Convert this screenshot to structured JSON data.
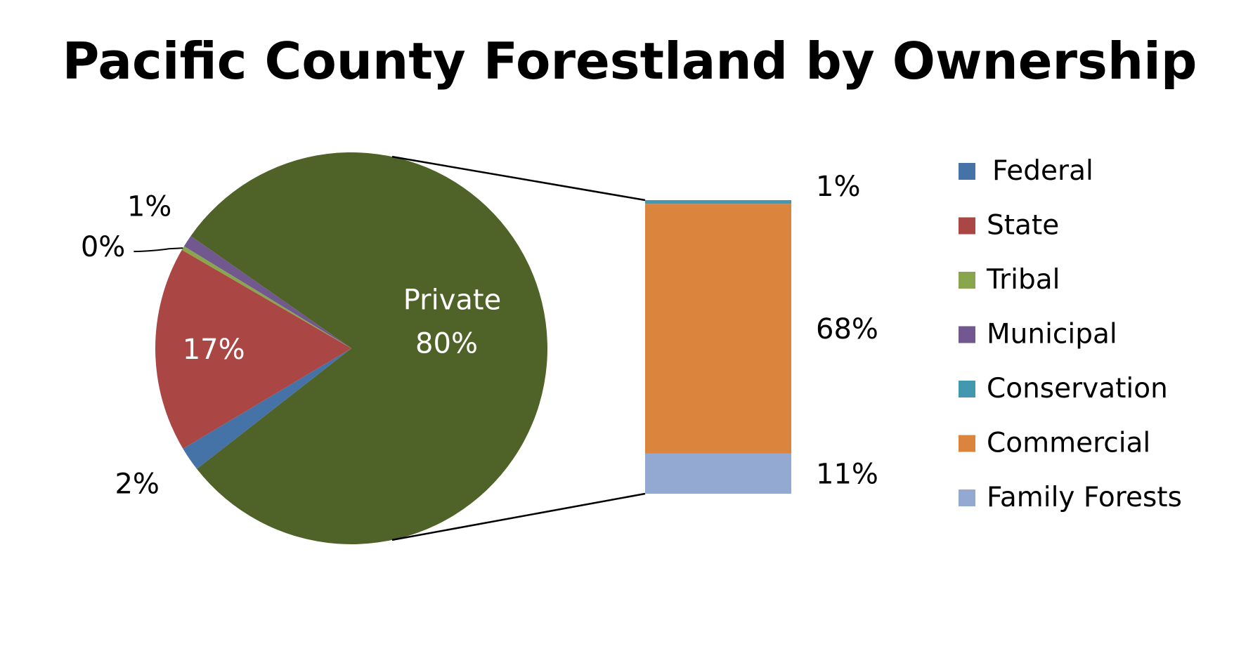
{
  "chart_data": {
    "type": "pie",
    "subtype": "bar-of-pie",
    "title": "Pacific County Forestland by Ownership",
    "pie": {
      "slices": [
        {
          "name": "Federal",
          "value": 2,
          "label": "2%",
          "color": "#4572A7"
        },
        {
          "name": "State",
          "value": 17,
          "label": "17%",
          "color": "#AA4643"
        },
        {
          "name": "Tribal",
          "value": 0,
          "label": "0%",
          "color": "#89A54E"
        },
        {
          "name": "Municipal",
          "value": 1,
          "label": "1%",
          "color": "#71588F"
        },
        {
          "name": "Private",
          "value": 80,
          "label": "80%",
          "color": "#4F6228"
        }
      ],
      "private_label": "Private"
    },
    "bar": {
      "segments": [
        {
          "name": "Family Forests",
          "value": 11,
          "label": "11%",
          "color": "#93A9D1"
        },
        {
          "name": "Commercial",
          "value": 68,
          "label": "68%",
          "color": "#DB843D"
        },
        {
          "name": "Conservation",
          "value": 1,
          "label": "1%",
          "color": "#4198AF"
        }
      ]
    },
    "legend": {
      "position": "right",
      "items": [
        {
          "name": "Federal",
          "color": "#4572A7"
        },
        {
          "name": "State",
          "color": "#AA4643"
        },
        {
          "name": "Tribal",
          "color": "#89A54E"
        },
        {
          "name": "Municipal",
          "color": "#71588F"
        },
        {
          "name": "Conservation",
          "color": "#4198AF"
        },
        {
          "name": "Commercial",
          "color": "#DB843D"
        },
        {
          "name": "Family Forests",
          "color": "#93A9D1"
        }
      ]
    }
  }
}
